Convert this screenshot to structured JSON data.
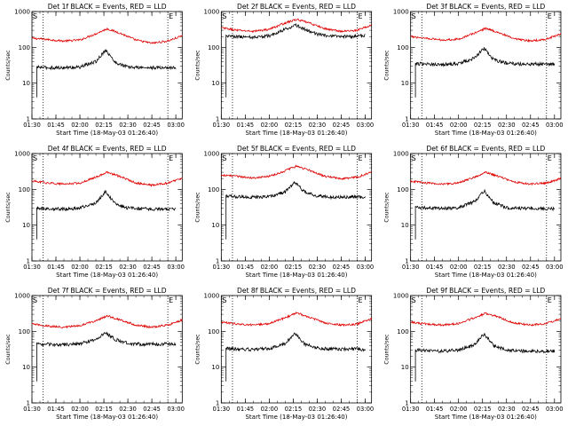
{
  "figure": {
    "shared_xlabel": "Start Time (18-May-03 01:26:40)",
    "shared_ylabel": "Counts/sec",
    "colors": {
      "events": "#000000",
      "lld": "#e00000",
      "axes": "#000000",
      "background": "#ffffff"
    }
  },
  "chart_data": [
    {
      "type": "line",
      "title": "Det 1f BLACK = Events, RED = LLD",
      "xlabel": "Start Time (18-May-03 01:26:40)",
      "ylabel": "Counts/sec",
      "yscale": "log",
      "ylim": [
        1,
        1000
      ],
      "ytick_labels": [
        "1",
        "10",
        "100",
        "1000"
      ],
      "xlim": [
        "01:30",
        "03:04"
      ],
      "xtick_labels": [
        "01:30",
        "01:45",
        "02:00",
        "02:15",
        "02:30",
        "02:45",
        "03:00"
      ],
      "markers": [
        "S",
        "E"
      ],
      "vlines_dotted": [
        "01:37",
        "02:55"
      ],
      "series": [
        {
          "color": "#e00000",
          "x": [
            "01:30",
            "01:40",
            "01:50",
            "02:00",
            "02:10",
            "02:17",
            "02:25",
            "02:35",
            "02:45",
            "02:55",
            "03:04"
          ],
          "values": [
            180,
            165,
            150,
            160,
            240,
            330,
            250,
            160,
            130,
            150,
            210
          ]
        },
        {
          "color": "#000000",
          "x": [
            "01:33",
            "01:40",
            "01:50",
            "02:00",
            "02:10",
            "02:16",
            "02:22",
            "02:30",
            "02:40",
            "02:50",
            "03:00"
          ],
          "values": [
            28,
            27,
            27,
            28,
            40,
            85,
            38,
            28,
            27,
            27,
            27
          ]
        }
      ]
    },
    {
      "type": "line",
      "title": "Det 2f BLACK = Events, RED = LLD",
      "xlabel": "Start Time (18-May-03 01:26:40)",
      "ylabel": "Counts/sec",
      "yscale": "log",
      "ylim": [
        1,
        1000
      ],
      "ytick_labels": [
        "1",
        "10",
        "100",
        "1000"
      ],
      "xlim": [
        "01:30",
        "03:04"
      ],
      "xtick_labels": [
        "01:30",
        "01:45",
        "02:00",
        "02:15",
        "02:30",
        "02:45",
        "03:00"
      ],
      "markers": [
        "S",
        "E"
      ],
      "vlines_dotted": [
        "01:37",
        "02:55"
      ],
      "series": [
        {
          "color": "#e00000",
          "x": [
            "01:30",
            "01:40",
            "01:50",
            "02:00",
            "02:10",
            "02:17",
            "02:25",
            "02:35",
            "02:45",
            "02:55",
            "03:04"
          ],
          "values": [
            350,
            300,
            280,
            320,
            480,
            600,
            480,
            330,
            280,
            300,
            420
          ]
        },
        {
          "color": "#000000",
          "x": [
            "01:33",
            "01:40",
            "01:50",
            "02:00",
            "02:10",
            "02:16",
            "02:22",
            "02:30",
            "02:40",
            "02:50",
            "03:00"
          ],
          "values": [
            210,
            200,
            190,
            210,
            320,
            420,
            330,
            230,
            200,
            200,
            210
          ]
        }
      ]
    },
    {
      "type": "line",
      "title": "Det 3f BLACK = Events, RED = LLD",
      "xlabel": "Start Time (18-May-03 01:26:40)",
      "ylabel": "Counts/sec",
      "yscale": "log",
      "ylim": [
        1,
        1000
      ],
      "ytick_labels": [
        "1",
        "10",
        "100",
        "1000"
      ],
      "xlim": [
        "01:30",
        "03:04"
      ],
      "xtick_labels": [
        "01:30",
        "01:45",
        "02:00",
        "02:15",
        "02:30",
        "02:45",
        "03:00"
      ],
      "markers": [
        "S",
        "E"
      ],
      "vlines_dotted": [
        "01:37",
        "02:55"
      ],
      "series": [
        {
          "color": "#e00000",
          "x": [
            "01:30",
            "01:40",
            "01:50",
            "02:00",
            "02:10",
            "02:17",
            "02:25",
            "02:35",
            "02:45",
            "02:55",
            "03:04"
          ],
          "values": [
            200,
            180,
            160,
            170,
            250,
            340,
            260,
            170,
            150,
            170,
            240
          ]
        },
        {
          "color": "#000000",
          "x": [
            "01:33",
            "01:40",
            "01:50",
            "02:00",
            "02:10",
            "02:16",
            "02:22",
            "02:30",
            "02:40",
            "02:50",
            "03:00"
          ],
          "values": [
            35,
            34,
            33,
            35,
            50,
            95,
            45,
            36,
            34,
            34,
            33
          ]
        }
      ]
    },
    {
      "type": "line",
      "title": "Det 4f BLACK = Events, RED = LLD",
      "xlabel": "Start Time (18-May-03 01:26:40)",
      "ylabel": "Counts/sec",
      "yscale": "log",
      "ylim": [
        1,
        1000
      ],
      "ytick_labels": [
        "1",
        "10",
        "100",
        "1000"
      ],
      "xlim": [
        "01:30",
        "03:04"
      ],
      "xtick_labels": [
        "01:30",
        "01:45",
        "02:00",
        "02:15",
        "02:30",
        "02:45",
        "03:00"
      ],
      "markers": [
        "S",
        "E"
      ],
      "vlines_dotted": [
        "01:37",
        "02:55"
      ],
      "series": [
        {
          "color": "#e00000",
          "x": [
            "01:30",
            "01:40",
            "01:50",
            "02:00",
            "02:10",
            "02:17",
            "02:25",
            "02:35",
            "02:45",
            "02:55",
            "03:04"
          ],
          "values": [
            170,
            150,
            140,
            150,
            220,
            300,
            230,
            150,
            130,
            150,
            200
          ]
        },
        {
          "color": "#000000",
          "x": [
            "01:33",
            "01:40",
            "01:50",
            "02:00",
            "02:10",
            "02:16",
            "02:22",
            "02:30",
            "02:40",
            "02:50",
            "03:00"
          ],
          "values": [
            30,
            29,
            28,
            30,
            42,
            85,
            40,
            30,
            28,
            28,
            28
          ]
        }
      ]
    },
    {
      "type": "line",
      "title": "Det 5f BLACK = Events, RED = LLD",
      "xlabel": "Start Time (18-May-03 01:26:40)",
      "ylabel": "Counts/sec",
      "yscale": "log",
      "ylim": [
        1,
        1000
      ],
      "ytick_labels": [
        "1",
        "10",
        "100",
        "1000"
      ],
      "xlim": [
        "01:30",
        "03:04"
      ],
      "xtick_labels": [
        "01:30",
        "01:45",
        "02:00",
        "02:15",
        "02:30",
        "02:45",
        "03:00"
      ],
      "markers": [
        "S",
        "E"
      ],
      "vlines_dotted": [
        "01:37",
        "02:55"
      ],
      "series": [
        {
          "color": "#e00000",
          "x": [
            "01:30",
            "01:40",
            "01:50",
            "02:00",
            "02:10",
            "02:17",
            "02:25",
            "02:35",
            "02:45",
            "02:55",
            "03:04"
          ],
          "values": [
            250,
            230,
            210,
            230,
            330,
            450,
            340,
            230,
            200,
            220,
            300
          ]
        },
        {
          "color": "#000000",
          "x": [
            "01:33",
            "01:40",
            "01:50",
            "02:00",
            "02:10",
            "02:16",
            "02:22",
            "02:30",
            "02:40",
            "02:50",
            "03:00"
          ],
          "values": [
            65,
            62,
            60,
            63,
            85,
            160,
            85,
            65,
            60,
            62,
            62
          ]
        }
      ]
    },
    {
      "type": "line",
      "title": "Det 6f BLACK = Events, RED = LLD",
      "xlabel": "Start Time (18-May-03 01:26:40)",
      "ylabel": "Counts/sec",
      "yscale": "log",
      "ylim": [
        1,
        1000
      ],
      "ytick_labels": [
        "1",
        "10",
        "100",
        "1000"
      ],
      "xlim": [
        "01:30",
        "03:04"
      ],
      "xtick_labels": [
        "01:30",
        "01:45",
        "02:00",
        "02:15",
        "02:30",
        "02:45",
        "03:00"
      ],
      "markers": [
        "S",
        "E"
      ],
      "vlines_dotted": [
        "01:37",
        "02:55"
      ],
      "series": [
        {
          "color": "#e00000",
          "x": [
            "01:30",
            "01:40",
            "01:50",
            "02:00",
            "02:10",
            "02:17",
            "02:25",
            "02:35",
            "02:45",
            "02:55",
            "03:04"
          ],
          "values": [
            170,
            150,
            140,
            150,
            220,
            300,
            230,
            160,
            140,
            150,
            200
          ]
        },
        {
          "color": "#000000",
          "x": [
            "01:33",
            "01:40",
            "01:50",
            "02:00",
            "02:10",
            "02:16",
            "02:22",
            "02:30",
            "02:40",
            "02:50",
            "03:00"
          ],
          "values": [
            32,
            30,
            29,
            31,
            45,
            90,
            42,
            31,
            29,
            29,
            28
          ]
        }
      ]
    },
    {
      "type": "line",
      "title": "Det 7f BLACK = Events, RED = LLD",
      "xlabel": "Start Time (18-May-03 01:26:40)",
      "ylabel": "Counts/sec",
      "yscale": "log",
      "ylim": [
        1,
        1000
      ],
      "ytick_labels": [
        "1",
        "10",
        "100",
        "1000"
      ],
      "xlim": [
        "01:30",
        "03:04"
      ],
      "xtick_labels": [
        "01:30",
        "01:45",
        "02:00",
        "02:15",
        "02:30",
        "02:45",
        "03:00"
      ],
      "markers": [
        "S",
        "E"
      ],
      "vlines_dotted": [
        "01:37",
        "02:55"
      ],
      "series": [
        {
          "color": "#e00000",
          "x": [
            "01:30",
            "01:40",
            "01:50",
            "02:00",
            "02:10",
            "02:17",
            "02:25",
            "02:35",
            "02:45",
            "02:55",
            "03:04"
          ],
          "values": [
            160,
            140,
            130,
            145,
            200,
            270,
            210,
            150,
            130,
            150,
            210
          ]
        },
        {
          "color": "#000000",
          "x": [
            "01:33",
            "01:40",
            "01:50",
            "02:00",
            "02:10",
            "02:16",
            "02:22",
            "02:30",
            "02:40",
            "02:50",
            "03:00"
          ],
          "values": [
            45,
            43,
            42,
            45,
            60,
            90,
            60,
            46,
            43,
            44,
            45
          ]
        }
      ]
    },
    {
      "type": "line",
      "title": "Det 8f BLACK = Events, RED = LLD",
      "xlabel": "Start Time (18-May-03 01:26:40)",
      "ylabel": "Counts/sec",
      "yscale": "log",
      "ylim": [
        1,
        1000
      ],
      "ytick_labels": [
        "1",
        "10",
        "100",
        "1000"
      ],
      "xlim": [
        "01:30",
        "03:04"
      ],
      "xtick_labels": [
        "01:30",
        "01:45",
        "02:00",
        "02:15",
        "02:30",
        "02:45",
        "03:00"
      ],
      "markers": [
        "S",
        "E"
      ],
      "vlines_dotted": [
        "01:37",
        "02:55"
      ],
      "series": [
        {
          "color": "#e00000",
          "x": [
            "01:30",
            "01:40",
            "01:50",
            "02:00",
            "02:10",
            "02:17",
            "02:25",
            "02:35",
            "02:45",
            "02:55",
            "03:04"
          ],
          "values": [
            180,
            160,
            150,
            165,
            240,
            330,
            250,
            170,
            150,
            160,
            230
          ]
        },
        {
          "color": "#000000",
          "x": [
            "01:33",
            "01:40",
            "01:50",
            "02:00",
            "02:10",
            "02:16",
            "02:22",
            "02:30",
            "02:40",
            "02:50",
            "03:00"
          ],
          "values": [
            33,
            32,
            31,
            33,
            45,
            90,
            45,
            34,
            32,
            32,
            31
          ]
        }
      ]
    },
    {
      "type": "line",
      "title": "Det 9f BLACK = Events, RED = LLD",
      "xlabel": "Start Time (18-May-03 01:26:40)",
      "ylabel": "Counts/sec",
      "yscale": "log",
      "ylim": [
        1,
        1000
      ],
      "ytick_labels": [
        "1",
        "10",
        "100",
        "1000"
      ],
      "xlim": [
        "01:30",
        "03:04"
      ],
      "xtick_labels": [
        "01:30",
        "01:45",
        "02:00",
        "02:15",
        "02:30",
        "02:45",
        "03:00"
      ],
      "markers": [
        "S",
        "E"
      ],
      "vlines_dotted": [
        "01:37",
        "02:55"
      ],
      "series": [
        {
          "color": "#e00000",
          "x": [
            "01:30",
            "01:40",
            "01:50",
            "02:00",
            "02:10",
            "02:17",
            "02:25",
            "02:35",
            "02:45",
            "02:55",
            "03:04"
          ],
          "values": [
            180,
            160,
            150,
            165,
            240,
            320,
            250,
            170,
            150,
            165,
            230
          ]
        },
        {
          "color": "#000000",
          "x": [
            "01:33",
            "01:40",
            "01:50",
            "02:00",
            "02:10",
            "02:16",
            "02:22",
            "02:30",
            "02:40",
            "02:50",
            "03:00"
          ],
          "values": [
            30,
            29,
            28,
            30,
            42,
            85,
            40,
            30,
            28,
            28,
            28
          ]
        }
      ]
    }
  ]
}
